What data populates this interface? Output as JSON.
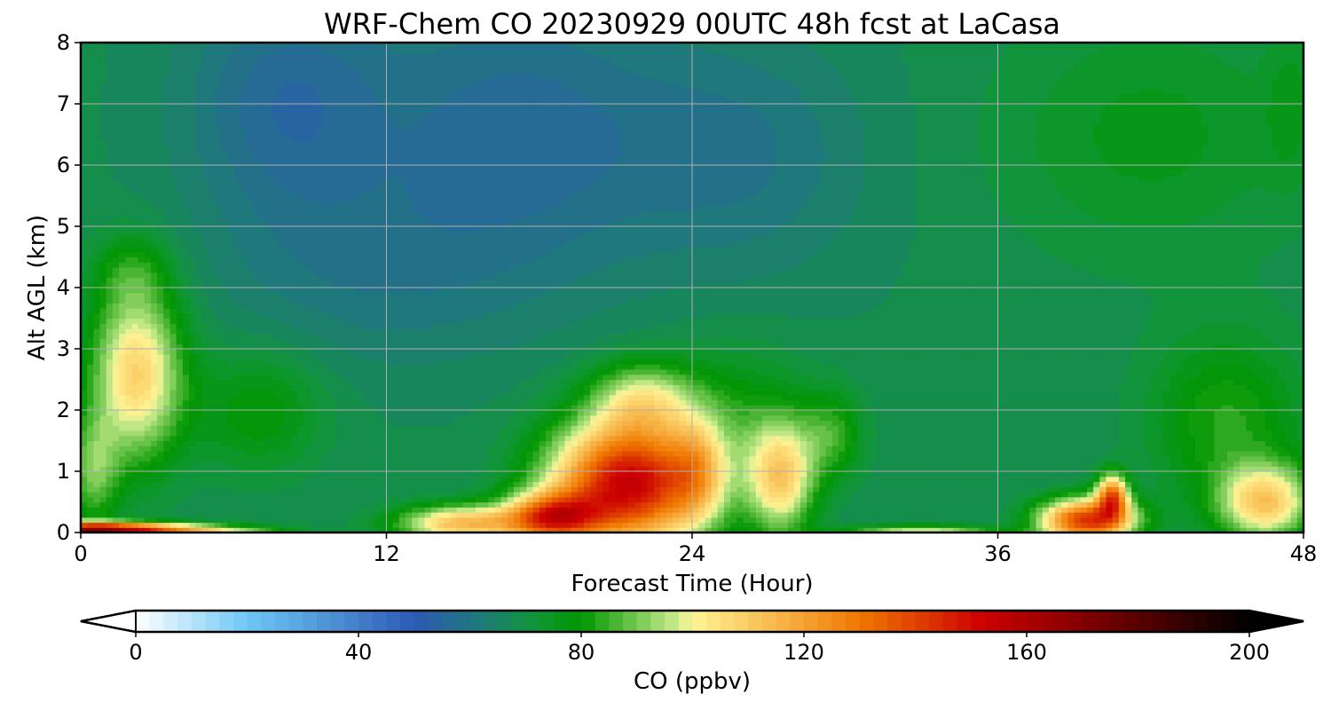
{
  "chart_data": {
    "type": "heatmap",
    "title": "WRF-Chem CO  20230929 00UTC 48h fcst at LaCasa",
    "xlabel": "Forecast Time (Hour)",
    "ylabel": "Alt AGL (km)",
    "xlim": [
      0,
      48
    ],
    "ylim": [
      0,
      8
    ],
    "xticks": [
      0,
      12,
      24,
      36,
      48
    ],
    "yticks": [
      0,
      1,
      2,
      3,
      4,
      5,
      6,
      7,
      8
    ],
    "grid": true,
    "colorbar": {
      "label": "CO  (ppbv)",
      "min": 0,
      "max": 200,
      "step": 2.5,
      "ticks": [
        0,
        40,
        80,
        120,
        160,
        200
      ],
      "extend": "both",
      "stops": [
        {
          "v": 0,
          "c": "#ffffff"
        },
        {
          "v": 20,
          "c": "#6ec8f5"
        },
        {
          "v": 50,
          "c": "#2d5ab4"
        },
        {
          "v": 62,
          "c": "#1e7a78"
        },
        {
          "v": 72,
          "c": "#109636"
        },
        {
          "v": 80,
          "c": "#009600"
        },
        {
          "v": 97,
          "c": "#c8eb8c"
        },
        {
          "v": 100,
          "c": "#fff596"
        },
        {
          "v": 130,
          "c": "#f07800"
        },
        {
          "v": 152,
          "c": "#cd0000"
        },
        {
          "v": 175,
          "c": "#6e0000"
        },
        {
          "v": 200,
          "c": "#000000"
        }
      ]
    },
    "field": {
      "background": 68,
      "features": [
        {
          "t": 2.2,
          "z": 2.6,
          "st": 1.8,
          "sz": 1.4,
          "a": 40
        },
        {
          "t": 0.5,
          "z": 1.0,
          "st": 1.0,
          "sz": 0.9,
          "a": 20
        },
        {
          "t": 2.0,
          "z": 4.3,
          "st": 1.5,
          "sz": 0.6,
          "a": 10
        },
        {
          "t": 7.0,
          "z": 2.0,
          "st": 2.5,
          "sz": 1.0,
          "a": 12
        },
        {
          "t": 0.5,
          "z": 0.05,
          "st": 3.5,
          "sz": 0.12,
          "a": 95
        },
        {
          "t": 8.0,
          "z": 7.0,
          "st": 4.0,
          "sz": 2.0,
          "a": -12
        },
        {
          "t": 17.0,
          "z": 6.5,
          "st": 6.0,
          "sz": 2.5,
          "a": -12
        },
        {
          "t": 11.0,
          "z": 4.2,
          "st": 6.0,
          "sz": 1.5,
          "a": -6
        },
        {
          "t": 26.0,
          "z": 6.2,
          "st": 5.0,
          "sz": 2.0,
          "a": -8
        },
        {
          "t": 42.0,
          "z": 6.5,
          "st": 6.0,
          "sz": 2.0,
          "a": 8
        },
        {
          "t": 47.5,
          "z": 7.0,
          "st": 1.0,
          "sz": 1.3,
          "a": 6
        },
        {
          "t": 21.5,
          "z": 0.8,
          "st": 3.0,
          "sz": 1.0,
          "a": 85
        },
        {
          "t": 22.0,
          "z": 2.2,
          "st": 2.0,
          "sz": 0.6,
          "a": 25
        },
        {
          "t": 24.2,
          "z": 1.0,
          "st": 1.0,
          "sz": 0.8,
          "a": 20
        },
        {
          "t": 18.5,
          "z": 0.25,
          "st": 1.8,
          "sz": 0.4,
          "a": 60
        },
        {
          "t": 15.0,
          "z": 0.15,
          "st": 2.5,
          "sz": 0.3,
          "a": 45
        },
        {
          "t": 27.5,
          "z": 0.9,
          "st": 1.3,
          "sz": 0.9,
          "a": 38
        },
        {
          "t": 29.5,
          "z": 1.6,
          "st": 1.2,
          "sz": 0.7,
          "a": 15
        },
        {
          "t": 25.5,
          "z": 1.8,
          "st": 3.0,
          "sz": 1.2,
          "a": 12
        },
        {
          "t": 39.5,
          "z": 0.2,
          "st": 1.8,
          "sz": 0.35,
          "a": 75
        },
        {
          "t": 40.5,
          "z": 0.6,
          "st": 0.6,
          "sz": 0.35,
          "a": 60
        },
        {
          "t": 46.5,
          "z": 0.5,
          "st": 1.8,
          "sz": 0.6,
          "a": 40
        },
        {
          "t": 45.0,
          "z": 1.8,
          "st": 3.0,
          "sz": 1.4,
          "a": 15
        },
        {
          "t": 33.0,
          "z": 0.02,
          "st": 3.0,
          "sz": 0.1,
          "a": 30
        },
        {
          "t": 5.0,
          "z": 0.02,
          "st": 3.0,
          "sz": 0.1,
          "a": 25
        }
      ]
    }
  }
}
